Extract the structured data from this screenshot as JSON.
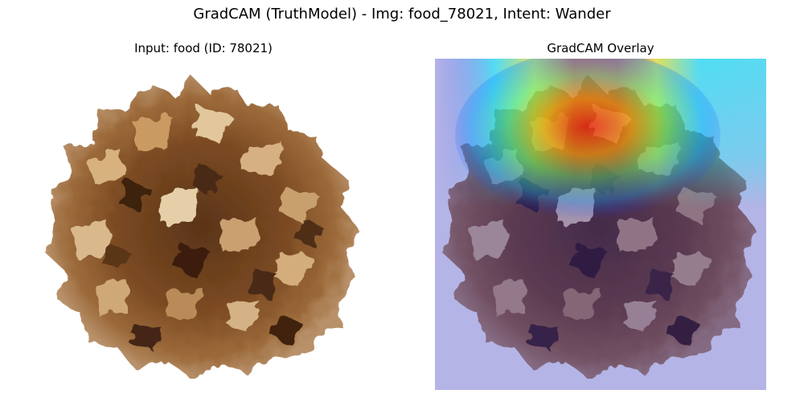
{
  "figure": {
    "suptitle": "GradCAM (TruthModel) - Img: food_78021, Intent: Wander"
  },
  "panels": [
    {
      "title": "Input: food (ID: 78021)",
      "content": "pixelated photo of a dried brown and tan pinecone-like food item on a white background"
    },
    {
      "title": "GradCAM Overlay",
      "content": "same photo tinted blue, with a jet-colormap heat band concentrated along the top center of the object",
      "colormap": "jet",
      "tint_color": "#1a1ab4"
    }
  ],
  "colors": {
    "background": "#ffffff",
    "object_dark": "#4a2a14",
    "object_mid": "#8a5a2e",
    "object_light": "#d9b48a",
    "heat_low": "#0000ff",
    "heat_mid": "#00ffff",
    "heat_high": "#ff0000"
  }
}
